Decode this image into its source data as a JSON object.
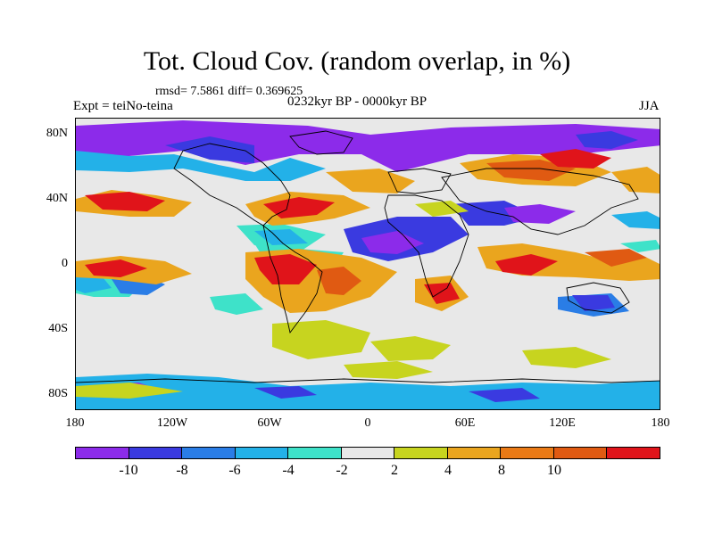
{
  "title": "Tot. Cloud Cov. (random overlap, in %)",
  "stats": "rmsd= 7.5861 diff= 0.369625",
  "experiment": "Expt = teiNo-teina",
  "period": "0232kyr BP - 0000kyr BP",
  "season": "JJA",
  "lat_labels": [
    "80N",
    "40N",
    "0",
    "40S",
    "80S"
  ],
  "lon_labels": [
    "180",
    "120W",
    "60W",
    "0",
    "60E",
    "120E",
    "180"
  ],
  "colorbar": {
    "colors": [
      "#8c2bea",
      "#3a3ae0",
      "#2a7de6",
      "#23b1e8",
      "#3ee2c9",
      "#e8e8e8",
      "#c7d41f",
      "#eaa51e",
      "#ea7a16",
      "#e05a12",
      "#e0141a"
    ],
    "labels": [
      "-10",
      "-8",
      "-6",
      "-4",
      "-2",
      "2",
      "4",
      "8",
      "10"
    ]
  }
}
